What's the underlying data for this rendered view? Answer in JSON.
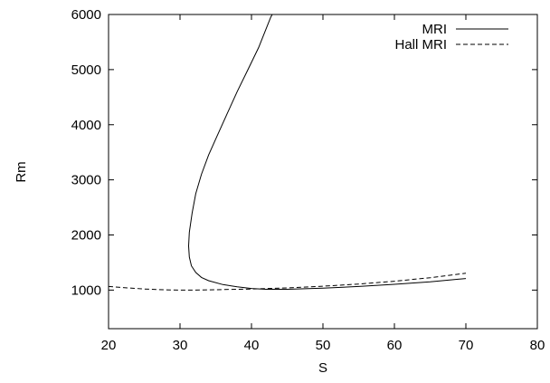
{
  "chart_data": {
    "type": "line",
    "title": "",
    "xlabel": "S",
    "ylabel": "Rm",
    "xlim": [
      20,
      80
    ],
    "ylim": [
      300,
      6000
    ],
    "xticks": [
      20,
      30,
      40,
      50,
      60,
      70,
      80
    ],
    "yticks": [
      1000,
      2000,
      3000,
      4000,
      5000,
      6000
    ],
    "grid": false,
    "legend_position": "top-right",
    "series": [
      {
        "name": "MRI",
        "style": "solid",
        "color": "#000000",
        "points": [
          [
            70,
            1210
          ],
          [
            65,
            1150
          ],
          [
            60,
            1105
          ],
          [
            55,
            1065
          ],
          [
            50,
            1035
          ],
          [
            45,
            1015
          ],
          [
            42,
            1015
          ],
          [
            40,
            1030
          ],
          [
            38,
            1060
          ],
          [
            36,
            1100
          ],
          [
            34,
            1170
          ],
          [
            33,
            1230
          ],
          [
            32.2,
            1320
          ],
          [
            31.6,
            1440
          ],
          [
            31.3,
            1600
          ],
          [
            31.2,
            1800
          ],
          [
            31.3,
            2050
          ],
          [
            31.7,
            2400
          ],
          [
            32.2,
            2750
          ],
          [
            33,
            3100
          ],
          [
            34,
            3450
          ],
          [
            35.2,
            3800
          ],
          [
            36.6,
            4200
          ],
          [
            38,
            4600
          ],
          [
            39.5,
            5000
          ],
          [
            41,
            5400
          ],
          [
            42.7,
            5950
          ],
          [
            42.9,
            6000
          ]
        ]
      },
      {
        "name": "Hall MRI",
        "style": "dashed",
        "color": "#000000",
        "points": [
          [
            20,
            1065
          ],
          [
            22,
            1045
          ],
          [
            25,
            1020
          ],
          [
            28,
            1005
          ],
          [
            30,
            1000
          ],
          [
            33,
            1002
          ],
          [
            36,
            1010
          ],
          [
            40,
            1020
          ],
          [
            45,
            1040
          ],
          [
            50,
            1070
          ],
          [
            55,
            1110
          ],
          [
            60,
            1160
          ],
          [
            65,
            1225
          ],
          [
            70,
            1305
          ]
        ]
      }
    ]
  }
}
